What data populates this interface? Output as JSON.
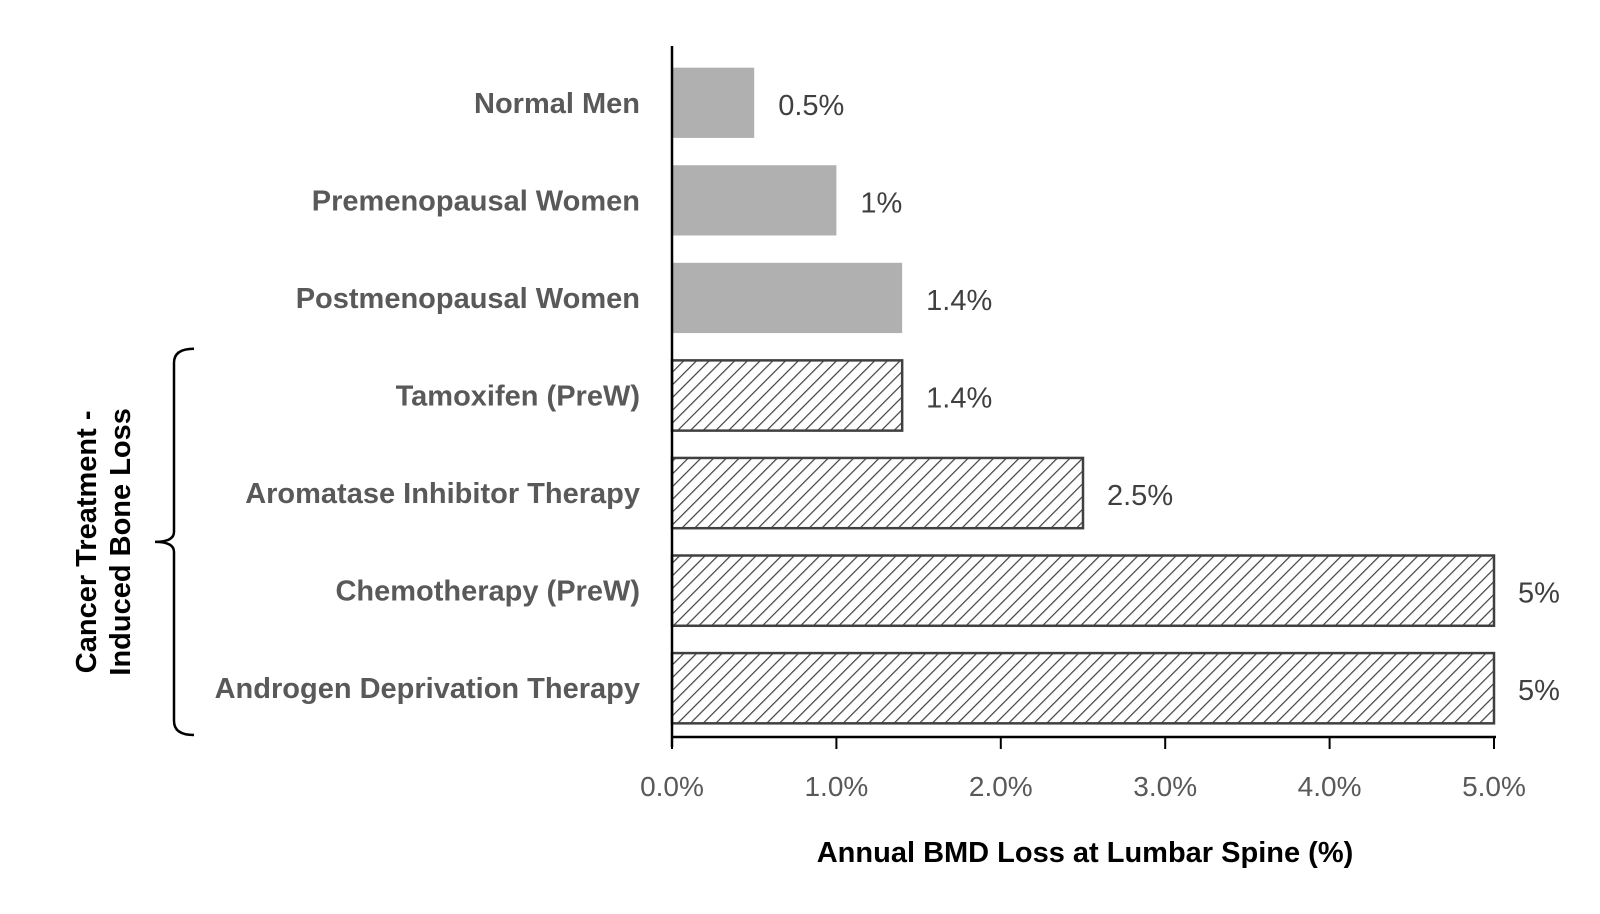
{
  "chart_data": {
    "type": "bar",
    "orientation": "horizontal",
    "categories": [
      "Normal Men",
      "Premenopausal Women",
      "Postmenopausal Women",
      "Tamoxifen (PreW)",
      "Aromatase Inhibitor Therapy",
      "Chemotherapy (PreW)",
      "Androgen Deprivation Therapy"
    ],
    "values": [
      0.5,
      1.0,
      1.4,
      1.4,
      2.5,
      5.0,
      5.0
    ],
    "value_labels": [
      "0.5%",
      "1%",
      "1.4%",
      "1.4%",
      "2.5%",
      "5%",
      "5%"
    ],
    "fill_styles": [
      "solid",
      "solid",
      "solid",
      "hatched",
      "hatched",
      "hatched",
      "hatched"
    ],
    "xlabel": "Annual BMD Loss at Lumbar Spine (%)",
    "xlim": [
      0,
      5
    ],
    "xticks": [
      0,
      1,
      2,
      3,
      4,
      5
    ],
    "xtick_labels": [
      "0.0%",
      "1.0%",
      "2.0%",
      "3.0%",
      "4.0%",
      "5.0%"
    ],
    "group_bracket": {
      "label_lines": [
        "Cancer Treatment -",
        "Induced Bone Loss"
      ],
      "first_category_index": 3,
      "last_category_index": 6
    },
    "grid": false,
    "colors": {
      "solid_fill": "#b0b0b0",
      "hatch_stroke": "#404040",
      "axis": "#000000"
    }
  }
}
